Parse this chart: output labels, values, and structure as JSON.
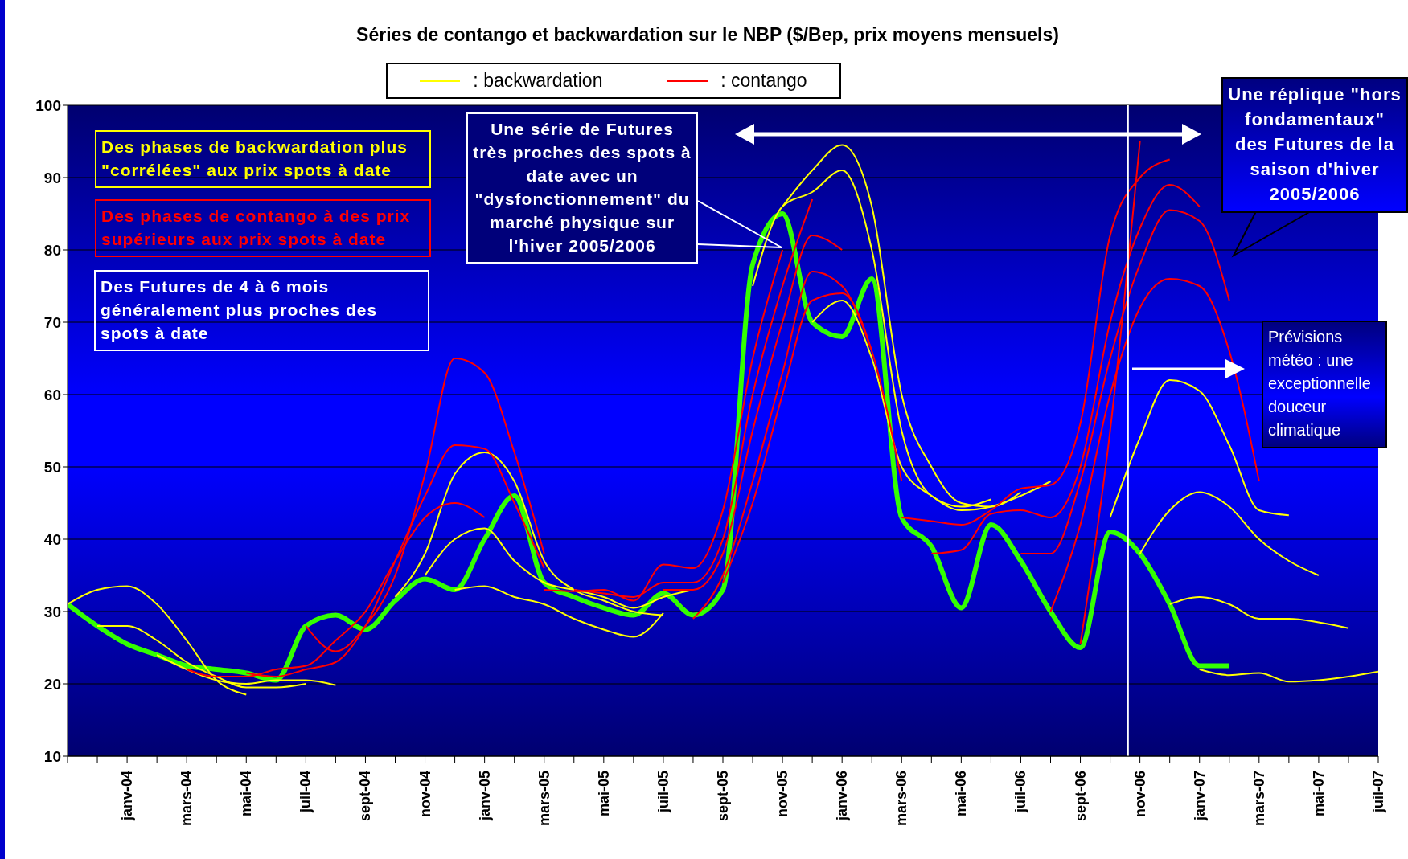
{
  "chart_data": {
    "type": "line",
    "title": "Séries de contango et backwardation sur le NBP ($/Bep, prix moyens mensuels)",
    "xlim": [
      "2003-11",
      "2007-07"
    ],
    "xticks": [
      {
        "value": "2003-11",
        "label": null
      },
      {
        "value": "2003-12",
        "label": null
      },
      {
        "value": "2004-01",
        "label": "janv-04"
      },
      {
        "value": "2004-02",
        "label": null
      },
      {
        "value": "2004-03",
        "label": "mars-04"
      },
      {
        "value": "2004-04",
        "label": null
      },
      {
        "value": "2004-05",
        "label": "mai-04"
      },
      {
        "value": "2004-06",
        "label": null
      },
      {
        "value": "2004-07",
        "label": "juil-04"
      },
      {
        "value": "2004-08",
        "label": null
      },
      {
        "value": "2004-09",
        "label": "sept-04"
      },
      {
        "value": "2004-10",
        "label": null
      },
      {
        "value": "2004-11",
        "label": "nov-04"
      },
      {
        "value": "2004-12",
        "label": null
      },
      {
        "value": "2005-01",
        "label": "janv-05"
      },
      {
        "value": "2005-02",
        "label": null
      },
      {
        "value": "2005-03",
        "label": "mars-05"
      },
      {
        "value": "2005-04",
        "label": null
      },
      {
        "value": "2005-05",
        "label": "mai-05"
      },
      {
        "value": "2005-06",
        "label": null
      },
      {
        "value": "2005-07",
        "label": "juil-05"
      },
      {
        "value": "2005-08",
        "label": null
      },
      {
        "value": "2005-09",
        "label": "sept-05"
      },
      {
        "value": "2005-10",
        "label": null
      },
      {
        "value": "2005-11",
        "label": "nov-05"
      },
      {
        "value": "2005-12",
        "label": null
      },
      {
        "value": "2006-01",
        "label": "janv-06"
      },
      {
        "value": "2006-02",
        "label": null
      },
      {
        "value": "2006-03",
        "label": "mars-06"
      },
      {
        "value": "2006-04",
        "label": null
      },
      {
        "value": "2006-05",
        "label": "mai-06"
      },
      {
        "value": "2006-06",
        "label": null
      },
      {
        "value": "2006-07",
        "label": "juil-06"
      },
      {
        "value": "2006-08",
        "label": null
      },
      {
        "value": "2006-09",
        "label": "sept-06"
      },
      {
        "value": "2006-10",
        "label": null
      },
      {
        "value": "2006-11",
        "label": "nov-06"
      },
      {
        "value": "2006-12",
        "label": null
      },
      {
        "value": "2007-01",
        "label": "janv-07"
      },
      {
        "value": "2007-02",
        "label": null
      },
      {
        "value": "2007-03",
        "label": "mars-07"
      },
      {
        "value": "2007-04",
        "label": null
      },
      {
        "value": "2007-05",
        "label": "mai-07"
      },
      {
        "value": "2007-06",
        "label": null
      },
      {
        "value": "2007-07",
        "label": "juil-07"
      }
    ],
    "ylim": [
      10,
      100
    ],
    "yticks": [
      10,
      20,
      30,
      40,
      50,
      60,
      70,
      80,
      90,
      100
    ],
    "grid": "y",
    "legend": "top",
    "marker": "none",
    "line_style": "solid",
    "series": [
      {
        "color": "#33ff00",
        "x": [
          "2003-11",
          "2003-12",
          "2004-01",
          "2004-02",
          "2004-03",
          "2004-04",
          "2004-05",
          "2004-06",
          "2004-07",
          "2004-08",
          "2004-09",
          "2004-10",
          "2004-11",
          "2004-12",
          "2005-01",
          "2005-02",
          "2005-03",
          "2005-04",
          "2005-05",
          "2005-06",
          "2005-07",
          "2005-08",
          "2005-09",
          "2005-10",
          "2005-11",
          "2005-12",
          "2006-01",
          "2006-02",
          "2006-03",
          "2006-04",
          "2006-05",
          "2006-06",
          "2006-07",
          "2006-08",
          "2006-09",
          "2006-10",
          "2006-11",
          "2006-12",
          "2007-01",
          "2007-02"
        ],
        "values": [
          31,
          28,
          25.5,
          24,
          22.5,
          22,
          21.5,
          20.5,
          28,
          29.5,
          27.5,
          31.5,
          34.5,
          33,
          40,
          46,
          34,
          32,
          30.5,
          29.5,
          32.5,
          29.5,
          33,
          78,
          85,
          70,
          68,
          76,
          43,
          39,
          30.5,
          42,
          37,
          30,
          25,
          41,
          38,
          31,
          22.5,
          22.5
        ]
      },
      {
        "name": ": backwardation",
        "color": "#ffff00",
        "x": [
          "2003-11",
          "2003-12",
          "2004-01",
          "2004-02",
          "2004-03",
          "2004-04",
          "2004-05"
        ],
        "values": [
          31,
          33,
          33.5,
          31,
          26,
          20.5,
          18.5
        ]
      },
      {
        "color": "#ffff00",
        "x": [
          "2003-12",
          "2004-01",
          "2004-02",
          "2004-03",
          "2004-04",
          "2004-05",
          "2004-06",
          "2004-07"
        ],
        "values": [
          28,
          28,
          26,
          23,
          21,
          19.5,
          19.5,
          20
        ]
      },
      {
        "color": "#ffff00",
        "x": [
          "2004-02",
          "2004-03",
          "2004-04",
          "2004-05",
          "2004-06",
          "2004-07",
          "2004-08"
        ],
        "values": [
          24,
          22,
          20.5,
          20,
          20.5,
          20.5,
          19.8
        ]
      },
      {
        "color": "#ffff00",
        "x": [
          "2004-10",
          "2004-11",
          "2004-12",
          "2005-01",
          "2005-02",
          "2005-03",
          "2005-04",
          "2005-05",
          "2005-06",
          "2005-07"
        ],
        "values": [
          32,
          38,
          49,
          52,
          48,
          37,
          33,
          31.5,
          30,
          29.5
        ]
      },
      {
        "color": "#ffff00",
        "x": [
          "2004-11",
          "2004-12",
          "2005-01",
          "2005-02",
          "2005-03",
          "2005-04",
          "2005-05",
          "2005-06",
          "2005-07",
          "2005-08"
        ],
        "values": [
          35,
          40,
          41.5,
          37,
          34,
          33,
          32,
          30.5,
          32,
          33
        ]
      },
      {
        "color": "#ffff00",
        "x": [
          "2004-12",
          "2005-01",
          "2005-02",
          "2005-03",
          "2005-04",
          "2005-05",
          "2005-06",
          "2005-07"
        ],
        "values": [
          33,
          33.5,
          32,
          31,
          29,
          27.5,
          26.5,
          29.8
        ]
      },
      {
        "color": "#ffff00",
        "x": [
          "2005-10",
          "2005-11",
          "2005-12",
          "2006-01",
          "2006-02",
          "2006-03",
          "2006-04",
          "2006-05",
          "2006-06"
        ],
        "values": [
          75,
          86,
          88,
          91,
          80,
          55,
          46,
          44.5,
          45.5
        ]
      },
      {
        "color": "#ffff00",
        "x": [
          "2005-11",
          "2005-12",
          "2006-01",
          "2006-02",
          "2006-03",
          "2006-04",
          "2006-05",
          "2006-06",
          "2006-07"
        ],
        "values": [
          86,
          91,
          94.5,
          86,
          60,
          50,
          45,
          44.5,
          46.5
        ]
      },
      {
        "color": "#ffff00",
        "x": [
          "2005-12",
          "2006-01",
          "2006-02",
          "2006-03",
          "2006-04",
          "2006-05",
          "2006-06",
          "2006-07",
          "2006-08"
        ],
        "values": [
          70,
          73,
          65,
          50,
          46,
          44,
          44.5,
          46,
          48
        ]
      },
      {
        "color": "#ffff00",
        "x": [
          "2006-10",
          "2006-11",
          "2006-12",
          "2007-01",
          "2007-02",
          "2007-03",
          "2007-04"
        ],
        "values": [
          43,
          54,
          62,
          60.5,
          53,
          44,
          43.3
        ]
      },
      {
        "color": "#ffff00",
        "x": [
          "2006-11",
          "2006-12",
          "2007-01",
          "2007-02",
          "2007-03",
          "2007-04",
          "2007-05"
        ],
        "values": [
          38,
          44,
          46.5,
          44.5,
          40,
          37,
          35
        ]
      },
      {
        "color": "#ffff00",
        "x": [
          "2006-12",
          "2007-01",
          "2007-02",
          "2007-03",
          "2007-04",
          "2007-05",
          "2007-06"
        ],
        "values": [
          31,
          32,
          31,
          29,
          29,
          28.5,
          27.7
        ]
      },
      {
        "color": "#ffff00",
        "x": [
          "2007-01",
          "2007-02",
          "2007-03",
          "2007-04",
          "2007-05",
          "2007-06",
          "2007-07"
        ],
        "values": [
          22,
          21.2,
          21.5,
          20.3,
          20.5,
          21,
          21.7
        ]
      },
      {
        "name": ": contango",
        "color": "#ff0000",
        "x": [
          "2004-03",
          "2004-04",
          "2004-05",
          "2004-06",
          "2004-07",
          "2004-08",
          "2004-09",
          "2004-10",
          "2004-11",
          "2004-12",
          "2005-01"
        ],
        "values": [
          22,
          21,
          21,
          22,
          22.5,
          26,
          30,
          37,
          43,
          45,
          43
        ]
      },
      {
        "color": "#ff0000",
        "x": [
          "2004-05",
          "2004-06",
          "2004-07",
          "2004-08",
          "2004-09",
          "2004-10",
          "2004-11",
          "2004-12",
          "2005-01",
          "2005-02",
          "2005-03"
        ],
        "values": [
          21.5,
          21,
          22,
          23,
          28,
          37,
          46,
          53,
          52.5,
          45,
          36
        ]
      },
      {
        "color": "#ff0000",
        "x": [
          "2004-07",
          "2004-08",
          "2004-09",
          "2004-10",
          "2004-11",
          "2004-12",
          "2005-01",
          "2005-02",
          "2005-03"
        ],
        "values": [
          28,
          24.5,
          28,
          35,
          49,
          65,
          63,
          52,
          38
        ]
      },
      {
        "color": "#ff0000",
        "x": [
          "2005-03",
          "2005-04",
          "2005-05",
          "2005-06",
          "2005-07",
          "2005-08",
          "2005-09",
          "2005-10",
          "2005-11"
        ],
        "values": [
          33,
          32.8,
          33,
          31.5,
          36.5,
          36,
          44,
          65,
          80
        ]
      },
      {
        "color": "#ff0000",
        "x": [
          "2005-04",
          "2005-05",
          "2005-06",
          "2005-07",
          "2005-08",
          "2005-09",
          "2005-10",
          "2005-11",
          "2005-12"
        ],
        "values": [
          33,
          32.5,
          32,
          34,
          34,
          40,
          60,
          75,
          87
        ]
      },
      {
        "color": "#ff0000",
        "x": [
          "2005-07",
          "2005-08",
          "2005-09",
          "2005-10",
          "2005-11",
          "2005-12",
          "2006-01"
        ],
        "values": [
          33,
          33,
          38,
          55,
          70,
          82,
          80
        ]
      },
      {
        "color": "#ff0000",
        "x": [
          "2005-08",
          "2005-09",
          "2005-10",
          "2005-11",
          "2005-12",
          "2006-01",
          "2006-02"
        ],
        "values": [
          29,
          35,
          48,
          63,
          77,
          75,
          66
        ]
      },
      {
        "color": "#ff0000",
        "x": [
          "2005-09",
          "2005-10",
          "2005-11",
          "2005-12",
          "2006-01",
          "2006-02",
          "2006-03"
        ],
        "values": [
          34,
          45,
          60,
          73,
          74,
          66,
          48
        ]
      },
      {
        "color": "#ff0000",
        "x": [
          "2006-03",
          "2006-04",
          "2006-05",
          "2006-06",
          "2006-07",
          "2006-08",
          "2006-09",
          "2006-10",
          "2006-11",
          "2006-12"
        ],
        "values": [
          43,
          42.5,
          42,
          44,
          47,
          47.5,
          56,
          82,
          90,
          92.5
        ]
      },
      {
        "color": "#ff0000",
        "x": [
          "2006-04",
          "2006-05",
          "2006-06",
          "2006-07",
          "2006-08",
          "2006-09",
          "2006-10",
          "2006-11",
          "2006-12",
          "2007-01"
        ],
        "values": [
          38,
          38.5,
          43.5,
          44,
          43,
          50,
          70,
          83,
          89,
          86
        ]
      },
      {
        "color": "#ff0000",
        "x": [
          "2006-07",
          "2006-08",
          "2006-09",
          "2006-10",
          "2006-11",
          "2006-12",
          "2007-01",
          "2007-02"
        ],
        "values": [
          38,
          38,
          48,
          65,
          78,
          85.5,
          84,
          73
        ]
      },
      {
        "color": "#ff0000",
        "x": [
          "2006-08",
          "2006-09",
          "2006-10",
          "2006-11",
          "2006-12",
          "2007-01",
          "2007-02",
          "2007-03"
        ],
        "values": [
          30,
          42,
          60,
          72,
          76,
          75,
          66,
          48
        ]
      },
      {
        "color": "#ff0000",
        "x": [
          "2006-09",
          "2006-10",
          "2006-11"
        ],
        "values": [
          25.5,
          55,
          95
        ]
      }
    ],
    "ref_lines": [
      {
        "axis": "x",
        "value": "2006-10-19",
        "color": "#ffffff"
      }
    ],
    "annotations": [
      "Des phases de backwardation plus \"corrélées\" aux prix spots à date",
      "Des phases de contango à des prix supérieurs aux prix spots à date",
      "Des Futures de 4 à 6 mois généralement plus proches des spots à date",
      "Une série de Futures très proches des spots à date avec un \"dysfonctionnement\" du marché physique sur l'hiver 2005/2006",
      "Une réplique \"hors fondamentaux\" des Futures de la saison d'hiver 2005/2006",
      "Prévisions météo : une exceptionnelle douceur climatique"
    ]
  }
}
